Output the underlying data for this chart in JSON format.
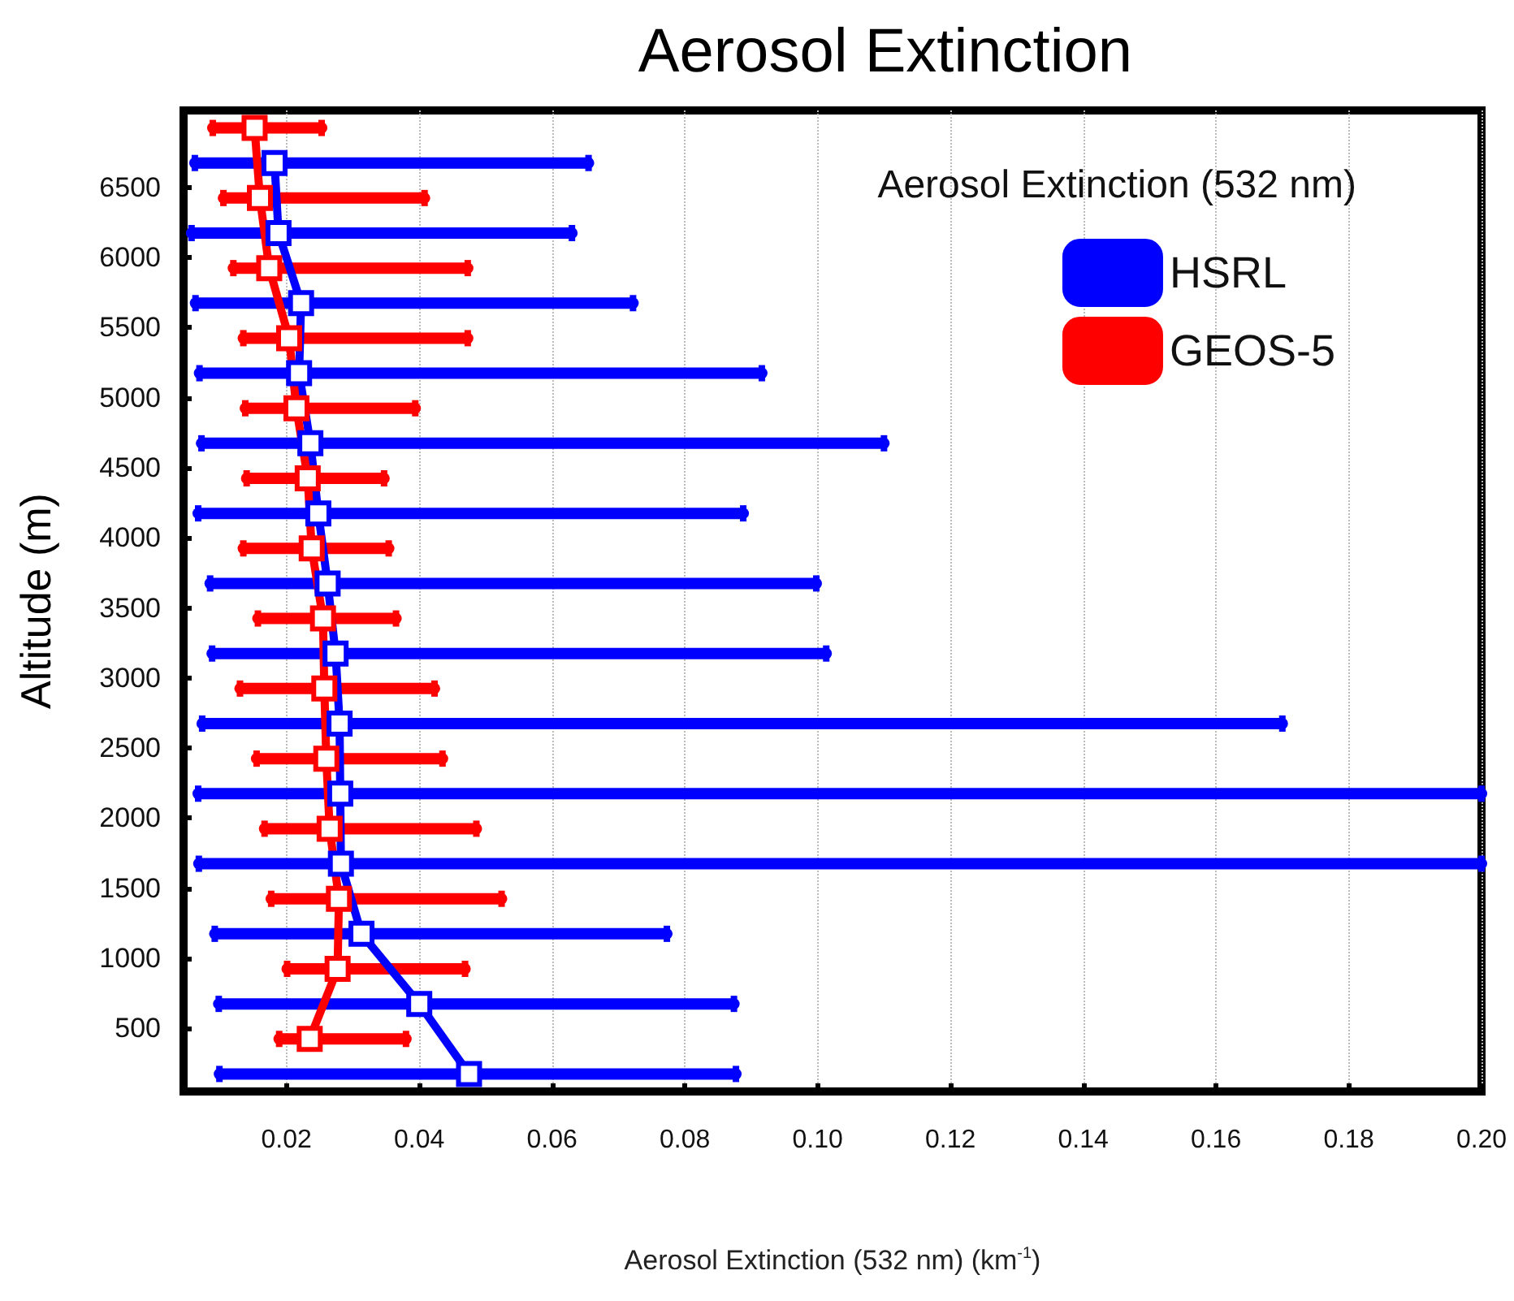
{
  "chart_data": {
    "type": "line",
    "title": "Aerosol Extinction",
    "xlabel": "Aerosol Extinction (532 nm) (km$^{-1}$)",
    "ylabel": "Altitude (m)",
    "legend_title": "Aerosol Extinction (532 nm)",
    "legend": "top right",
    "grid": "x",
    "marker": "square",
    "line_style": "solid",
    "xlim": [
      0.0045,
      0.2
    ],
    "xticks": [
      0.02,
      0.04,
      0.06,
      0.08,
      {
        "value": 0.1,
        "label": "0.10"
      },
      0.12,
      0.14,
      0.16,
      0.18,
      {
        "value": 0.2,
        "label": "0.20"
      }
    ],
    "ylim": [
      50,
      7050
    ],
    "yticks": [
      500,
      1000,
      1500,
      2000,
      2500,
      3000,
      3500,
      4000,
      4500,
      5000,
      5500,
      6000,
      6500
    ],
    "series": [
      {
        "name": "HSRL",
        "color": "#0000ff",
        "x": [
          0.0475,
          0.04,
          0.0313,
          0.0282,
          0.0281,
          0.028,
          0.0274,
          0.0262,
          0.0248,
          0.0236,
          0.0219,
          0.0222,
          0.0188,
          0.0182
        ],
        "values": [
          175,
          675,
          1175,
          1675,
          2175,
          2675,
          3175,
          3675,
          4175,
          4675,
          5175,
          5675,
          6175,
          6675
        ],
        "xerrors": [
          [
            0.0099,
            0.0877
          ],
          [
            0.0098,
            0.0874
          ],
          [
            0.0092,
            0.0773
          ],
          [
            0.0068,
            0.2
          ],
          [
            0.0067,
            0.2
          ],
          [
            0.0073,
            0.17
          ],
          [
            0.0088,
            0.1013
          ],
          [
            0.0085,
            0.0998
          ],
          [
            0.0067,
            0.0888
          ],
          [
            0.0072,
            0.11
          ],
          [
            0.0069,
            0.0916
          ],
          [
            0.0063,
            0.0722
          ],
          [
            0.0057,
            0.063
          ],
          [
            0.0062,
            0.0655
          ]
        ]
      },
      {
        "name": "GEOS-5",
        "color": "#ff0000",
        "x": [
          0.0235,
          0.0277,
          0.0279,
          0.0265,
          0.026,
          0.0257,
          0.0255,
          0.0238,
          0.0232,
          0.0215,
          0.0204,
          0.0174,
          0.016,
          0.0152
        ],
        "values": [
          425,
          925,
          1425,
          1925,
          2425,
          2925,
          3425,
          3925,
          4425,
          4925,
          5425,
          5925,
          6425,
          6925
        ],
        "xerrors": [
          [
            0.0189,
            0.038
          ],
          [
            0.0201,
            0.0469
          ],
          [
            0.0177,
            0.0524
          ],
          [
            0.0167,
            0.0486
          ],
          [
            0.0155,
            0.0435
          ],
          [
            0.013,
            0.0423
          ],
          [
            0.0157,
            0.0365
          ],
          [
            0.0135,
            0.0354
          ],
          [
            0.014,
            0.0347
          ],
          [
            0.0138,
            0.0394
          ],
          [
            0.0135,
            0.0473
          ],
          [
            0.012,
            0.0473
          ],
          [
            0.0105,
            0.0408
          ],
          [
            0.0089,
            0.0253
          ]
        ]
      }
    ]
  }
}
